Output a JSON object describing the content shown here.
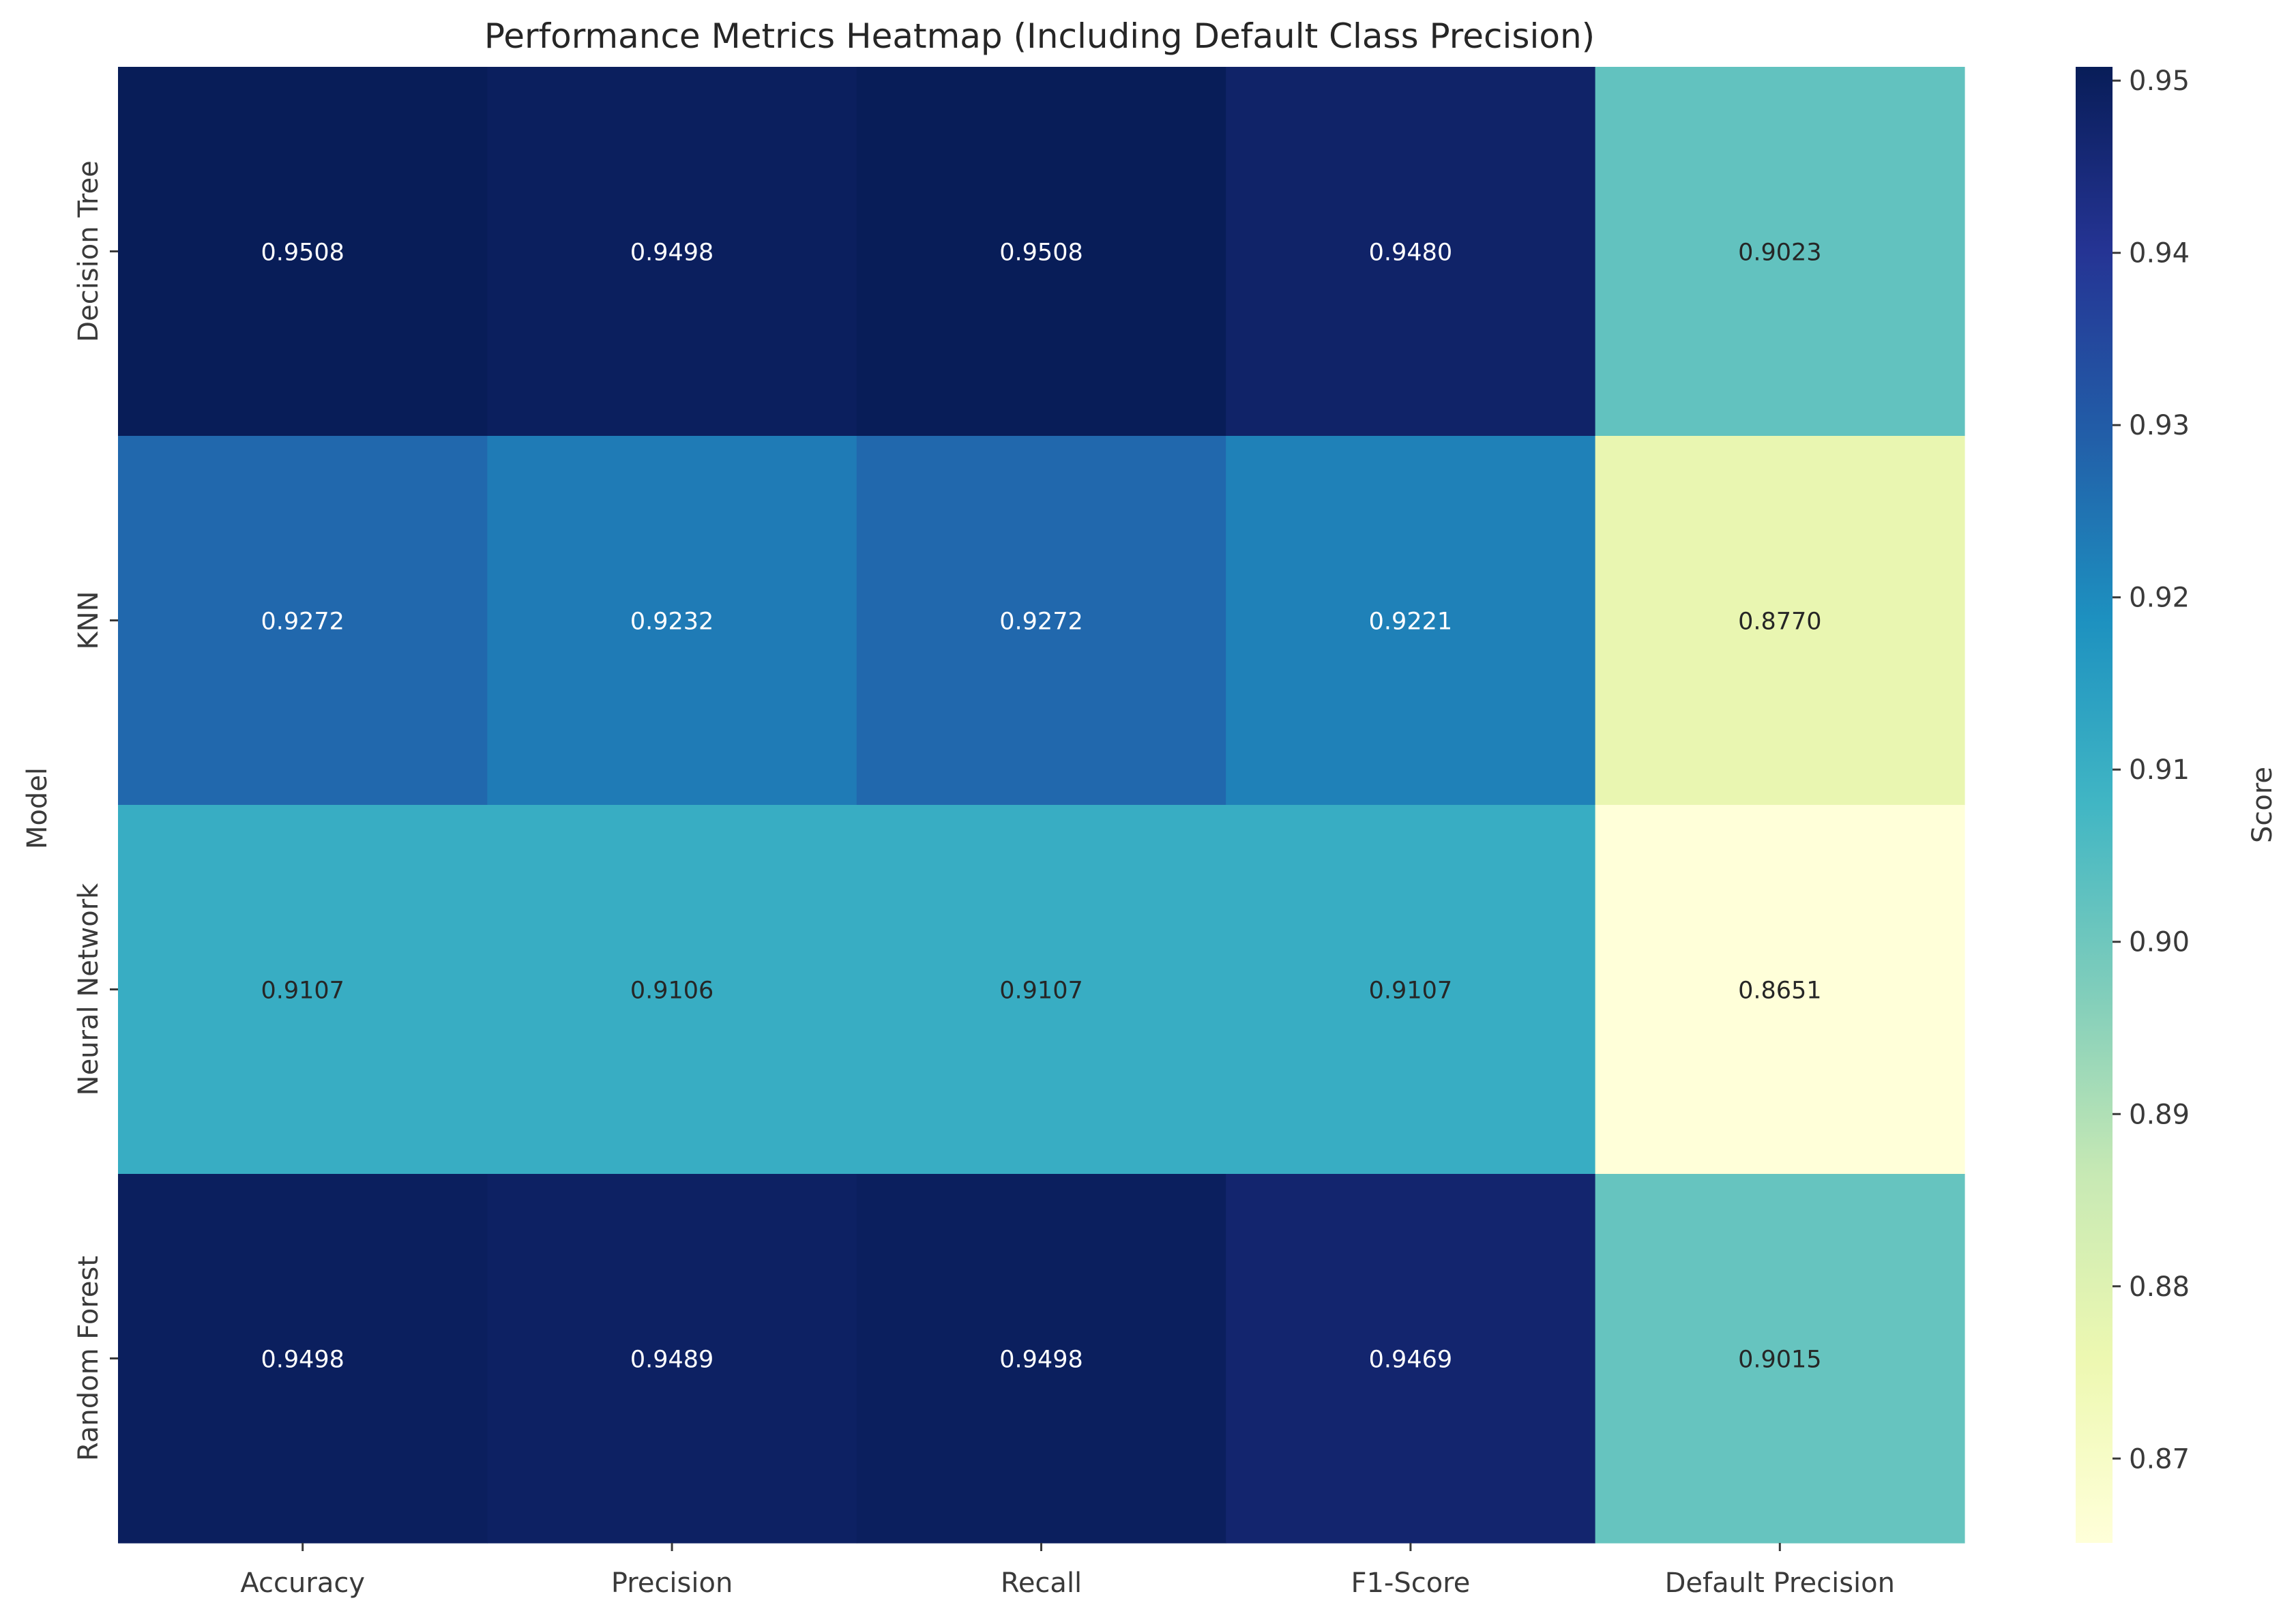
{
  "chart_data": {
    "type": "heatmap",
    "title": "Performance Metrics Heatmap (Including Default Class Precision)",
    "xlabel": "",
    "ylabel": "Model",
    "x_categories": [
      "Accuracy",
      "Precision",
      "Recall",
      "F1-Score",
      "Default Precision"
    ],
    "y_categories": [
      "Decision Tree",
      "KNN",
      "Neural Network",
      "Random Forest"
    ],
    "values": [
      [
        0.9508,
        0.9498,
        0.9508,
        0.948,
        0.9023
      ],
      [
        0.9272,
        0.9232,
        0.9272,
        0.9221,
        0.877
      ],
      [
        0.9107,
        0.9106,
        0.9107,
        0.9107,
        0.8651
      ],
      [
        0.9498,
        0.9489,
        0.9498,
        0.9469,
        0.9015
      ]
    ],
    "colorbar": {
      "label": "Score",
      "min": 0.8651,
      "max": 0.9508,
      "ticks": [
        0.87,
        0.88,
        0.89,
        0.9,
        0.91,
        0.92,
        0.93,
        0.94,
        0.95
      ],
      "tick_labels": [
        "0.87",
        "0.88",
        "0.89",
        "0.90",
        "0.91",
        "0.92",
        "0.93",
        "0.94",
        "0.95"
      ],
      "colormap": "YlGnBu"
    },
    "annotation_format": "4 decimals",
    "grid": false
  }
}
